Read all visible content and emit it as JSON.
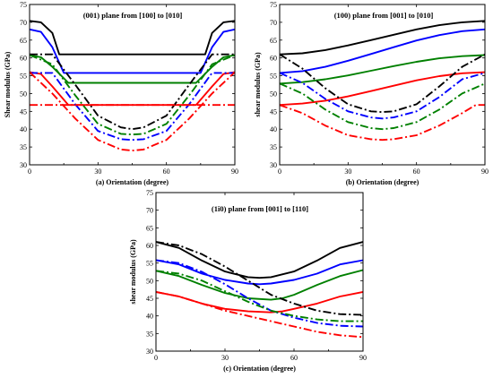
{
  "chart_data": [
    {
      "type": "line",
      "title": "(001) plane from [100] to [010]",
      "xlabel": "(a) Orientation (degree)",
      "ylabel": "Shear modulus (GPa)",
      "xlim": [
        0,
        90
      ],
      "ylim": [
        30,
        75
      ],
      "xticks": [
        "0",
        "30",
        "60",
        "90"
      ],
      "yticks": [
        "30",
        "35",
        "40",
        "45",
        "50",
        "55",
        "60",
        "65",
        "70",
        "75"
      ],
      "grid": false,
      "series": [
        {
          "color": "#000000",
          "style": "solid",
          "x": [
            0,
            5,
            10,
            13,
            77,
            80,
            85,
            90
          ],
          "y": [
            70.4,
            70,
            67,
            61,
            61,
            67,
            70,
            70.4
          ]
        },
        {
          "color": "#0000ff",
          "style": "solid",
          "x": [
            0,
            5,
            10,
            15,
            75,
            80,
            85,
            90
          ],
          "y": [
            68,
            67.3,
            63,
            55.8,
            55.8,
            63,
            67.3,
            68
          ]
        },
        {
          "color": "#008000",
          "style": "solid",
          "x": [
            0,
            5,
            10,
            17,
            73,
            80,
            85,
            90
          ],
          "y": [
            60.8,
            60.2,
            57.5,
            53,
            53,
            57.5,
            60.2,
            60.8
          ]
        },
        {
          "color": "#ff0000",
          "style": "solid",
          "x": [
            0,
            5,
            10,
            17,
            73,
            80,
            85,
            90
          ],
          "y": [
            56,
            55.5,
            52,
            46.8,
            46.8,
            52,
            55.5,
            56
          ]
        },
        {
          "color": "#000000",
          "style": "dashdot",
          "x": [
            0,
            10,
            20,
            30,
            40,
            45,
            50,
            60,
            70,
            80,
            90
          ],
          "y": [
            61,
            61,
            52.5,
            43.8,
            40.5,
            40,
            40.5,
            43.8,
            52.5,
            61,
            61
          ]
        },
        {
          "color": "#0000ff",
          "style": "dashdot",
          "x": [
            0,
            10,
            20,
            30,
            40,
            45,
            50,
            60,
            70,
            80,
            90
          ],
          "y": [
            55.8,
            55.8,
            47,
            39.5,
            37.2,
            37,
            37.2,
            39.5,
            47,
            55.8,
            55.8
          ]
        },
        {
          "color": "#008000",
          "style": "dashdot",
          "x": [
            0,
            10,
            20,
            30,
            40,
            45,
            50,
            60,
            70,
            80,
            90
          ],
          "y": [
            60.8,
            58.2,
            49.5,
            41.5,
            38.7,
            38.5,
            38.7,
            41.5,
            49.5,
            58.2,
            60.8
          ]
        },
        {
          "color": "#ff0000",
          "style": "dashdot",
          "x": [
            0,
            10,
            20,
            30,
            40,
            45,
            50,
            60,
            70,
            80,
            90
          ],
          "y": [
            56,
            50,
            43,
            37,
            34.3,
            34,
            34.3,
            37,
            43,
            50,
            56
          ]
        },
        {
          "color": "#ff0000",
          "style": "dashdot",
          "x": [
            0,
            90
          ],
          "y": [
            46.8,
            46.8
          ]
        }
      ]
    },
    {
      "type": "line",
      "title": "(100) plane from [001] to [010]",
      "xlabel": "(b) Orientation (degree)",
      "ylabel": "shear modulus (GPa)",
      "xlim": [
        0,
        90
      ],
      "ylim": [
        30,
        75
      ],
      "xticks": [
        "0",
        "30",
        "60",
        "90"
      ],
      "yticks": [
        "30",
        "35",
        "40",
        "45",
        "50",
        "55",
        "60",
        "65",
        "70",
        "75"
      ],
      "grid": false,
      "series": [
        {
          "color": "#000000",
          "style": "solid",
          "x": [
            0,
            10,
            20,
            30,
            40,
            50,
            60,
            70,
            80,
            90
          ],
          "y": [
            61,
            61.3,
            62.2,
            63.5,
            65,
            66.5,
            68,
            69.2,
            70,
            70.4
          ]
        },
        {
          "color": "#0000ff",
          "style": "solid",
          "x": [
            0,
            10,
            20,
            30,
            40,
            50,
            60,
            70,
            80,
            90
          ],
          "y": [
            55.8,
            56.3,
            57.5,
            59.2,
            61.1,
            63,
            64.9,
            66.4,
            67.5,
            68
          ]
        },
        {
          "color": "#008000",
          "style": "solid",
          "x": [
            0,
            10,
            20,
            30,
            40,
            50,
            60,
            70,
            80,
            90
          ],
          "y": [
            52.8,
            53.2,
            54,
            55.1,
            56.4,
            57.7,
            58.9,
            59.9,
            60.5,
            60.8
          ]
        },
        {
          "color": "#ff0000",
          "style": "solid",
          "x": [
            0,
            10,
            20,
            30,
            40,
            50,
            60,
            70,
            80,
            90
          ],
          "y": [
            46.8,
            47.2,
            48,
            49.2,
            50.7,
            52.2,
            53.7,
            54.9,
            55.7,
            56
          ]
        },
        {
          "color": "#000000",
          "style": "dashdot",
          "x": [
            0,
            10,
            20,
            30,
            40,
            45,
            50,
            60,
            70,
            80,
            90
          ],
          "y": [
            61,
            57,
            51.5,
            47,
            45,
            44.8,
            45,
            47,
            52,
            57.5,
            61
          ]
        },
        {
          "color": "#0000ff",
          "style": "dashdot",
          "x": [
            0,
            10,
            20,
            30,
            40,
            45,
            50,
            60,
            70,
            80,
            90
          ],
          "y": [
            55.8,
            53,
            48.5,
            45,
            43.3,
            43,
            43.3,
            45,
            49,
            54,
            55.8
          ]
        },
        {
          "color": "#008000",
          "style": "dashdot",
          "x": [
            0,
            10,
            20,
            30,
            40,
            45,
            50,
            60,
            70,
            80,
            90
          ],
          "y": [
            52.8,
            50,
            45.5,
            42,
            40.3,
            40,
            40.3,
            42,
            45.5,
            50,
            52.8
          ]
        },
        {
          "color": "#ff0000",
          "style": "dashdot",
          "x": [
            0,
            10,
            20,
            30,
            40,
            45,
            50,
            60,
            70,
            80,
            86,
            90
          ],
          "y": [
            46.8,
            44.5,
            41,
            38.3,
            37.2,
            37,
            37.2,
            38.3,
            41,
            44.5,
            46.8,
            46.8
          ]
        }
      ]
    },
    {
      "type": "line",
      "title": "(1ī0) plane from [001] to [110]",
      "xlabel": "(c) Orientation (degree)",
      "ylabel": "shear modulus (GPa)",
      "xlim": [
        0,
        90
      ],
      "ylim": [
        30,
        75
      ],
      "xticks": [
        "0",
        "30",
        "60",
        "90"
      ],
      "yticks": [
        "30",
        "35",
        "40",
        "45",
        "50",
        "55",
        "60",
        "65",
        "70",
        "75"
      ],
      "grid": false,
      "series": [
        {
          "color": "#000000",
          "style": "solid",
          "x": [
            0,
            10,
            20,
            30,
            40,
            45,
            50,
            60,
            70,
            80,
            90
          ],
          "y": [
            61,
            59.3,
            55.7,
            52.6,
            51,
            50.8,
            51,
            52.6,
            55.7,
            59.3,
            61
          ]
        },
        {
          "color": "#0000ff",
          "style": "solid",
          "x": [
            0,
            10,
            20,
            30,
            40,
            45,
            50,
            60,
            70,
            80,
            90
          ],
          "y": [
            55.8,
            54.6,
            52,
            50.2,
            49.2,
            49,
            49.2,
            50.2,
            52,
            54.6,
            55.8
          ]
        },
        {
          "color": "#008000",
          "style": "solid",
          "x": [
            0,
            10,
            20,
            30,
            40,
            50,
            55,
            60,
            70,
            80,
            90
          ],
          "y": [
            52.8,
            51.3,
            48.8,
            46.5,
            45,
            44.6,
            45,
            46,
            48.8,
            51.3,
            53
          ]
        },
        {
          "color": "#ff0000",
          "style": "solid",
          "x": [
            0,
            10,
            20,
            30,
            40,
            50,
            55,
            60,
            70,
            80,
            90
          ],
          "y": [
            46.8,
            45.5,
            43.5,
            42,
            41.3,
            41,
            41.3,
            42,
            43.5,
            45.5,
            46.8
          ]
        },
        {
          "color": "#000000",
          "style": "dashdot",
          "x": [
            0,
            10,
            20,
            30,
            40,
            50,
            60,
            70,
            80,
            90
          ],
          "y": [
            61,
            60,
            57.5,
            54,
            50,
            46,
            43.5,
            41.5,
            40.5,
            40.3
          ]
        },
        {
          "color": "#0000ff",
          "style": "dashdot",
          "x": [
            0,
            10,
            20,
            30,
            40,
            50,
            60,
            70,
            80,
            90
          ],
          "y": [
            55.8,
            55,
            52.5,
            49,
            45,
            41.5,
            39.5,
            38,
            37.2,
            37
          ]
        },
        {
          "color": "#008000",
          "style": "dashdot",
          "x": [
            0,
            10,
            20,
            30,
            40,
            50,
            60,
            70,
            80,
            90
          ],
          "y": [
            52.8,
            52,
            50,
            47,
            44,
            41.5,
            40,
            39,
            38.5,
            38.5
          ]
        },
        {
          "color": "#ff0000",
          "style": "dashdot",
          "x": [
            0,
            10,
            20,
            30,
            40,
            50,
            60,
            70,
            80,
            90
          ],
          "y": [
            46.8,
            45.5,
            43.5,
            41.5,
            40,
            38.5,
            37,
            35.5,
            34.5,
            34
          ]
        }
      ]
    }
  ]
}
